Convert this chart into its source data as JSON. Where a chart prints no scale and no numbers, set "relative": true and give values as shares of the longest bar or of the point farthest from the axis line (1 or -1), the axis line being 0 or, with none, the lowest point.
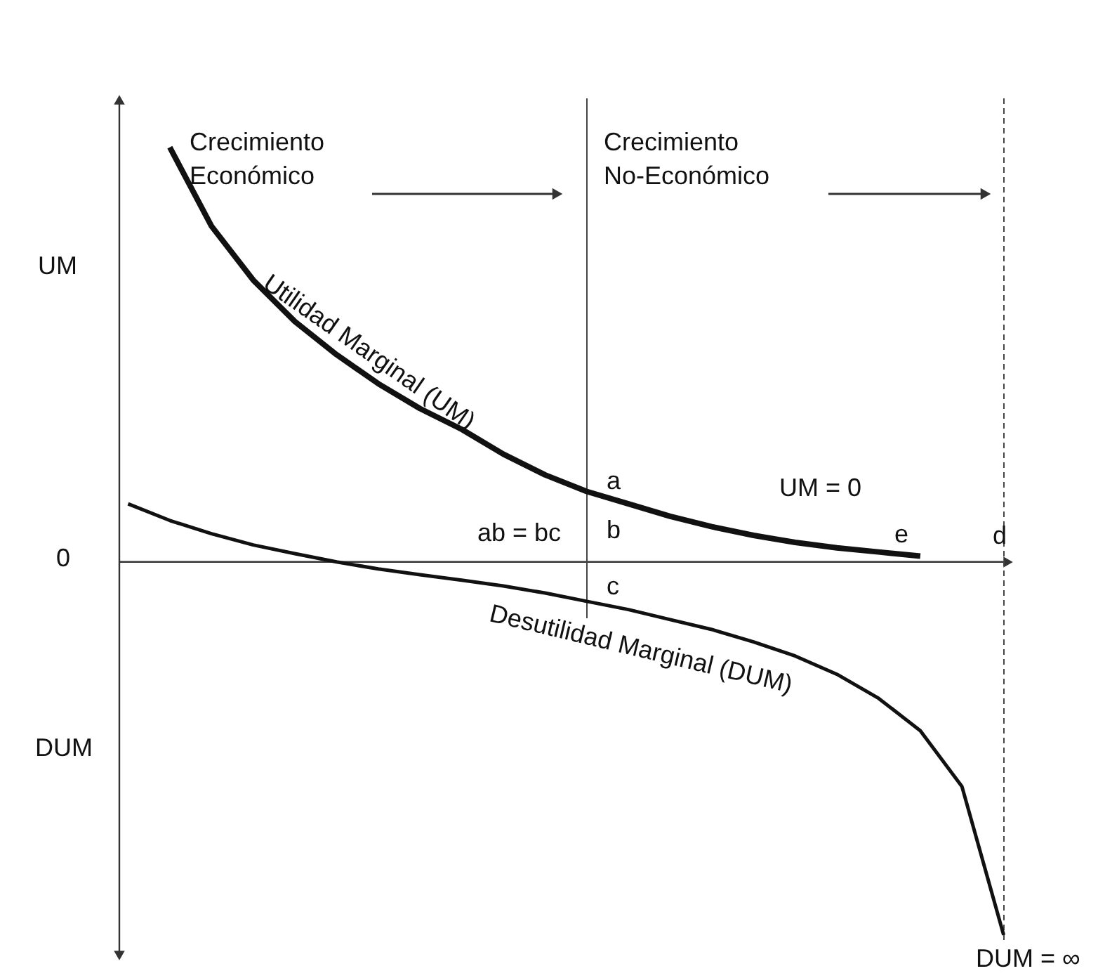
{
  "chart_data": {
    "type": "line",
    "relative": true,
    "line_style": "solid",
    "categories": [
      null,
      null,
      null,
      null,
      null,
      null,
      null,
      null,
      null,
      null,
      null,
      null,
      null,
      null,
      null,
      null,
      null,
      null,
      null,
      null,
      null,
      null
    ],
    "series": [
      {
        "name": "Utilidad Marginal (UM)",
        "color": "#111111",
        "values": [
          null,
          1.0,
          0.81,
          0.68,
          0.58,
          0.5,
          0.43,
          0.37,
          0.32,
          0.26,
          0.21,
          0.17,
          0.14,
          0.11,
          0.085,
          0.064,
          0.047,
          0.034,
          0.024,
          0.014,
          null,
          null
        ]
      },
      {
        "name": "Desutilidad Marginal (DUM)",
        "color": "#111111",
        "values": [
          0.14,
          0.1,
          0.068,
          0.041,
          0.02,
          0,
          -0.017,
          -0.031,
          -0.044,
          -0.058,
          -0.075,
          -0.095,
          -0.115,
          -0.139,
          -0.163,
          -0.193,
          -0.227,
          -0.271,
          -0.329,
          -0.407,
          -0.542,
          -0.9
        ]
      }
    ],
    "ref_lines": [
      {
        "axis": "x",
        "line_style": "solid"
      },
      {
        "axis": "x",
        "line_style": "dashed"
      }
    ],
    "annotations": [
      "Crecimiento\nEconómico",
      "Crecimiento\nNo-Económico",
      "UM",
      "DUM",
      "0",
      "a",
      "b",
      "c",
      "d",
      "e",
      "ab = bc",
      "UM = 0",
      "DUM = ∞"
    ]
  }
}
